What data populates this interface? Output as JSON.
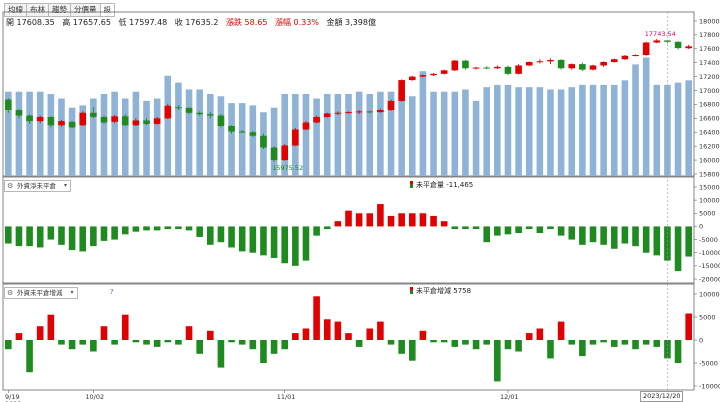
{
  "tabs": [
    {
      "label": "均線",
      "active": false
    },
    {
      "label": "布林",
      "active": false
    },
    {
      "label": "趨勢",
      "active": false
    },
    {
      "label": "分價量",
      "active": false
    },
    {
      "label": "設",
      "active": true
    }
  ],
  "ohlc": {
    "open_label": "開",
    "open": "17608.35",
    "high_label": "高",
    "high": "17657.65",
    "low_label": "低",
    "low": "17597.48",
    "close_label": "收",
    "close": "17635.2",
    "change_label": "漲跌",
    "change": "58.65",
    "pct_label": "漲幅",
    "pct": "0.33%",
    "amount_label": "金額",
    "amount": "3,398億"
  },
  "panel2": {
    "selector": "外資淨未平倉",
    "legend_label": "未平倉量",
    "legend_value": "-11,465"
  },
  "panel3": {
    "selector": "外資未平倉增減",
    "legend_label": "未平倉增減",
    "legend_value": "5758",
    "help": "?"
  },
  "annotations": {
    "high_label": "17743.54",
    "low_label": "15975.52"
  },
  "x_ticks": [
    {
      "label": "9/19",
      "index": 0
    },
    {
      "label": "10/02",
      "index": 8
    },
    {
      "label": "11/01",
      "index": 26
    },
    {
      "label": "12/01",
      "index": 47
    }
  ],
  "year_label": "2023",
  "current_date": "2023/12/20",
  "colors": {
    "up": "#e00000",
    "down": "#1f8a1f",
    "volume": "#8fb3d7"
  },
  "chart_data": [
    {
      "type": "candlestick",
      "title": "",
      "ylim": [
        15800,
        18100
      ],
      "yticks": [
        15800,
        16000,
        16200,
        16400,
        16600,
        16800,
        17000,
        17200,
        17400,
        17600,
        17800,
        18000
      ],
      "candles": [
        [
          16870,
          16890,
          16680,
          16720
        ],
        [
          16720,
          16730,
          16600,
          16640
        ],
        [
          16640,
          16660,
          16520,
          16560
        ],
        [
          16560,
          16640,
          16530,
          16620
        ],
        [
          16620,
          16630,
          16470,
          16500
        ],
        [
          16500,
          16580,
          16480,
          16560
        ],
        [
          16550,
          16560,
          16460,
          16470
        ],
        [
          16500,
          16700,
          16490,
          16680
        ],
        [
          16680,
          16760,
          16600,
          16620
        ],
        [
          16620,
          16640,
          16520,
          16540
        ],
        [
          16550,
          16650,
          16530,
          16630
        ],
        [
          16630,
          16660,
          16490,
          16500
        ],
        [
          16500,
          16600,
          16490,
          16570
        ],
        [
          16570,
          16600,
          16500,
          16520
        ],
        [
          16520,
          16620,
          16510,
          16600
        ],
        [
          16600,
          16810,
          16590,
          16780
        ],
        [
          16760,
          16790,
          16720,
          16750
        ],
        [
          16750,
          16760,
          16660,
          16680
        ],
        [
          16680,
          16700,
          16640,
          16660
        ],
        [
          16660,
          16690,
          16600,
          16640
        ],
        [
          16640,
          16660,
          16470,
          16490
        ],
        [
          16490,
          16500,
          16380,
          16410
        ],
        [
          16410,
          16430,
          16390,
          16400
        ],
        [
          16400,
          16420,
          16330,
          16350
        ],
        [
          16350,
          16380,
          16160,
          16180
        ],
        [
          16180,
          16200,
          15975,
          16000
        ],
        [
          16000,
          16230,
          15990,
          16210
        ],
        [
          16210,
          16460,
          16200,
          16440
        ],
        [
          16440,
          16560,
          16430,
          16540
        ],
        [
          16540,
          16640,
          16530,
          16620
        ],
        [
          16620,
          16680,
          16610,
          16670
        ],
        [
          16670,
          16700,
          16650,
          16680
        ],
        [
          16680,
          16700,
          16670,
          16690
        ],
        [
          16690,
          16720,
          16660,
          16700
        ],
        [
          16700,
          16710,
          16670,
          16690
        ],
        [
          16690,
          16740,
          16680,
          16720
        ],
        [
          16720,
          16870,
          16710,
          16850
        ],
        [
          16850,
          17160,
          16840,
          17150
        ],
        [
          17150,
          17210,
          17140,
          17200
        ],
        [
          17200,
          17230,
          17190,
          17220
        ],
        [
          17220,
          17250,
          17210,
          17240
        ],
        [
          17240,
          17300,
          17230,
          17290
        ],
        [
          17290,
          17440,
          17280,
          17430
        ],
        [
          17430,
          17440,
          17300,
          17320
        ],
        [
          17320,
          17340,
          17300,
          17330
        ],
        [
          17330,
          17350,
          17310,
          17320
        ],
        [
          17320,
          17360,
          17310,
          17340
        ],
        [
          17340,
          17360,
          17220,
          17240
        ],
        [
          17240,
          17380,
          17230,
          17360
        ],
        [
          17360,
          17420,
          17350,
          17410
        ],
        [
          17410,
          17450,
          17390,
          17420
        ],
        [
          17420,
          17460,
          17380,
          17440
        ],
        [
          17440,
          17450,
          17300,
          17320
        ],
        [
          17320,
          17390,
          17300,
          17380
        ],
        [
          17380,
          17400,
          17280,
          17300
        ],
        [
          17300,
          17370,
          17290,
          17360
        ],
        [
          17360,
          17420,
          17340,
          17410
        ],
        [
          17410,
          17460,
          17400,
          17450
        ],
        [
          17450,
          17510,
          17440,
          17500
        ],
        [
          17500,
          17520,
          17490,
          17510
        ],
        [
          17510,
          17700,
          17500,
          17690
        ],
        [
          17690,
          17743,
          17680,
          17720
        ],
        [
          17720,
          17730,
          17680,
          17700
        ],
        [
          17700,
          17710,
          17590,
          17610
        ],
        [
          17608,
          17658,
          17597,
          17635
        ]
      ],
      "volume_scale_max": 3600,
      "volume": [
        1850,
        1850,
        1850,
        1850,
        1800,
        1700,
        1500,
        1550,
        1700,
        1800,
        1850,
        1700,
        1850,
        1650,
        1700,
        2200,
        2050,
        1900,
        1900,
        1800,
        1750,
        1600,
        1600,
        1550,
        1400,
        1500,
        1800,
        1800,
        1800,
        1700,
        1800,
        1800,
        1800,
        1850,
        1800,
        1850,
        1850,
        1850,
        1750,
        2300,
        1850,
        1850,
        1850,
        1900,
        1650,
        1950,
        2000,
        2000,
        1950,
        1950,
        1950,
        1900,
        1900,
        1950,
        2000,
        2000,
        2000,
        2000,
        2100,
        2450,
        2600,
        2000,
        2000,
        2050,
        2100
      ],
      "high_annotation": {
        "index": 61,
        "value": 17743.54
      },
      "low_annotation": {
        "index": 25,
        "value": 15975.52
      }
    },
    {
      "type": "bar",
      "title": "",
      "ylim": [
        -20000,
        15000
      ],
      "yticks": [
        -20000,
        -15000,
        -10000,
        -5000,
        0,
        5000,
        10000,
        15000
      ],
      "values": [
        -6500,
        -7500,
        -7500,
        -8000,
        -5000,
        -7000,
        -9000,
        -9500,
        -7500,
        -5500,
        -5000,
        -3000,
        -2000,
        -1500,
        -1500,
        -1000,
        -1000,
        -1500,
        -4000,
        -7000,
        -6000,
        -8000,
        -9500,
        -10000,
        -11000,
        -12000,
        -14000,
        -15000,
        -13000,
        -3500,
        -1000,
        2000,
        6000,
        5000,
        5000,
        8500,
        4000,
        5000,
        5000,
        5000,
        4000,
        2000,
        -1000,
        -1000,
        -1000,
        -6000,
        -3500,
        -3000,
        -2500,
        -1000,
        -2500,
        -1000,
        -3500,
        -5000,
        -7000,
        -6000,
        -7000,
        -8500,
        -6500,
        -7500,
        -10000,
        -11000,
        -13000,
        -17000,
        -11465
      ]
    },
    {
      "type": "bar",
      "title": "",
      "ylim": [
        -10000,
        10000
      ],
      "yticks": [
        -10000,
        -5000,
        0,
        5000,
        10000
      ],
      "values": [
        -2000,
        1500,
        -7000,
        3000,
        5500,
        -1000,
        -2000,
        -1000,
        -2500,
        3000,
        -1000,
        5500,
        -500,
        -1000,
        -1500,
        -500,
        -1000,
        3000,
        -3000,
        2000,
        -6000,
        -500,
        -1000,
        -2000,
        -5000,
        -3000,
        -2000,
        1500,
        2500,
        9500,
        4500,
        4000,
        1500,
        -1500,
        2500,
        4000,
        -1000,
        -3000,
        -4500,
        2000,
        -500,
        -500,
        -1500,
        -1000,
        -2000,
        -1000,
        -9000,
        -2000,
        -2500,
        1500,
        2500,
        -4000,
        4000,
        -1000,
        -3500,
        -1000,
        -500,
        -1500,
        -1000,
        -2000,
        -1000,
        -1500,
        -4000,
        -5000,
        5758
      ]
    }
  ]
}
